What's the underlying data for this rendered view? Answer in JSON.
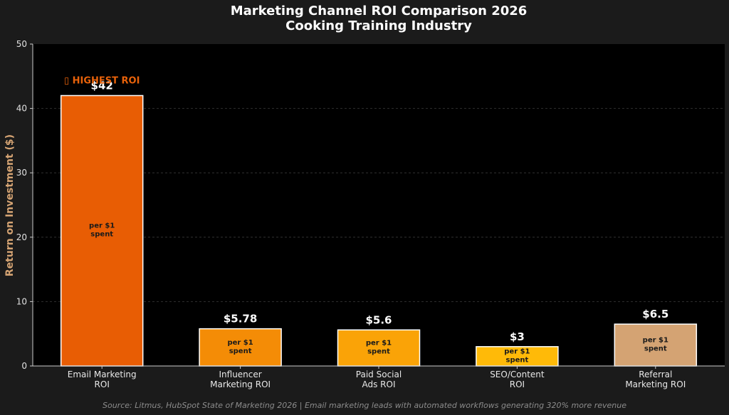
{
  "chart_data": {
    "type": "bar",
    "title_lines": [
      "Marketing Channel ROI Comparison 2026",
      "Cooking Training Industry"
    ],
    "xlabel": "",
    "ylabel": "Return on Investment ($)",
    "ylim": [
      0,
      50
    ],
    "yticks": [
      "0",
      "10",
      "20",
      "30",
      "40",
      "50"
    ],
    "grid": "horizontal dashed",
    "categories": [
      [
        "Email Marketing",
        "ROI"
      ],
      [
        "Influencer",
        "Marketing ROI"
      ],
      [
        "Paid Social",
        "Ads ROI"
      ],
      [
        "SEO/Content",
        "ROI"
      ],
      [
        "Referral",
        "Marketing ROI"
      ]
    ],
    "values": [
      42,
      5.78,
      5.6,
      3,
      6.5
    ],
    "value_labels": [
      "$42",
      "$5.78",
      "$5.6",
      "$3",
      "$6.5"
    ],
    "inner_label_lines": [
      "per $1",
      "spent"
    ],
    "colors": [
      "#e85d04",
      "#f48c06",
      "#faa307",
      "#ffba08",
      "#d4a373"
    ],
    "annotation": {
      "text": "▯ HIGHEST ROI",
      "target_index": 0
    },
    "source": "Source: Litmus, HubSpot State of Marketing 2026 | Email marketing leads with automated workflows generating 320% more revenue"
  }
}
